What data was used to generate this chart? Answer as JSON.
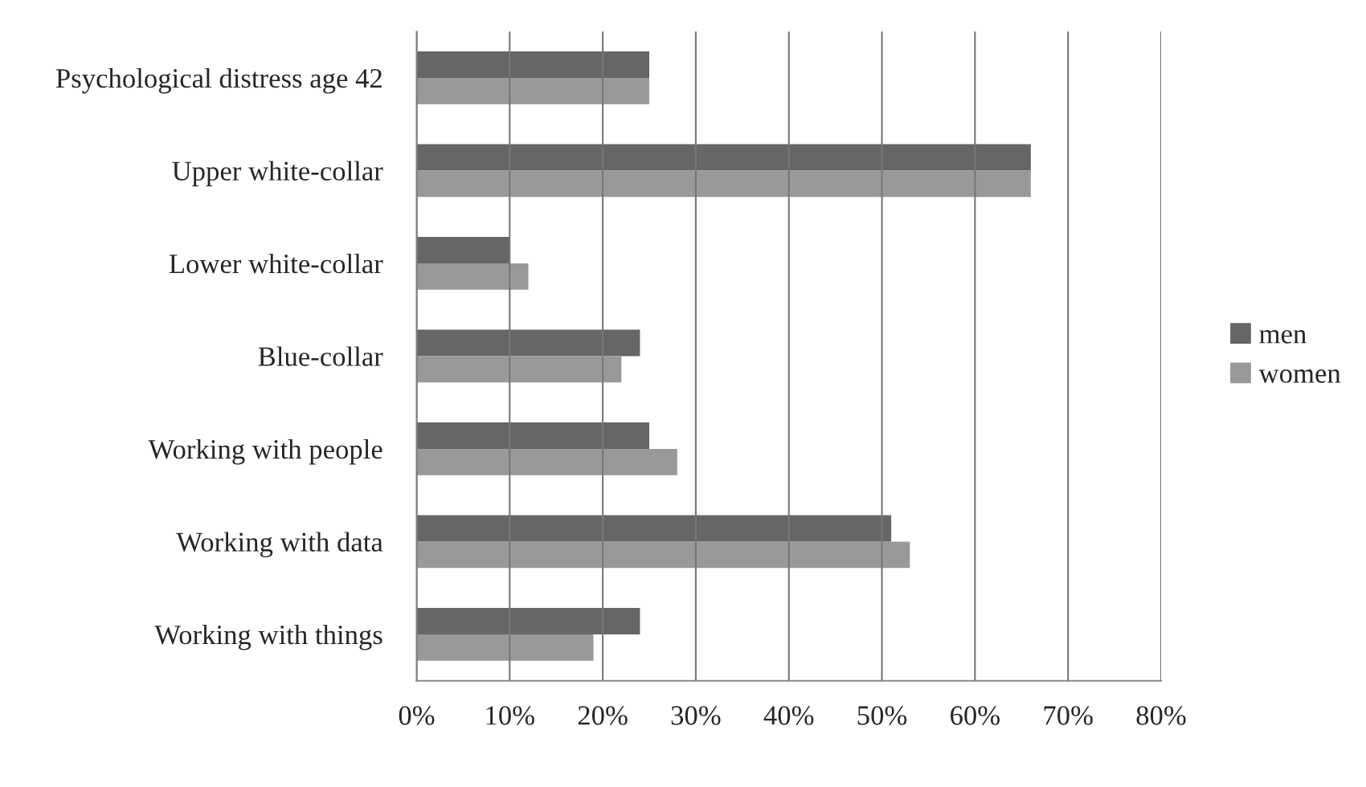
{
  "chart_data": {
    "type": "bar",
    "orientation": "horizontal",
    "categories": [
      "Psychological distress age 42",
      "Upper white-collar",
      "Lower white-collar",
      "Blue-collar",
      "Working with people",
      "Working with data",
      "Working with things"
    ],
    "series": [
      {
        "name": "men",
        "color": "#666666",
        "values": [
          25,
          66,
          10,
          24,
          25,
          51,
          24
        ]
      },
      {
        "name": "women",
        "color": "#999999",
        "values": [
          25,
          66,
          12,
          22,
          28,
          53,
          19
        ]
      }
    ],
    "xlim": [
      0,
      80
    ],
    "xticks": [
      {
        "value": 0,
        "label": "0%"
      },
      {
        "value": 10,
        "label": "10%"
      },
      {
        "value": 20,
        "label": "20%"
      },
      {
        "value": 30,
        "label": "30%"
      },
      {
        "value": 40,
        "label": "40%"
      },
      {
        "value": 50,
        "label": "50%"
      },
      {
        "value": 60,
        "label": "60%"
      },
      {
        "value": 70,
        "label": "70%"
      },
      {
        "value": 80,
        "label": "80%"
      }
    ],
    "grid": "x",
    "legend": "right"
  }
}
